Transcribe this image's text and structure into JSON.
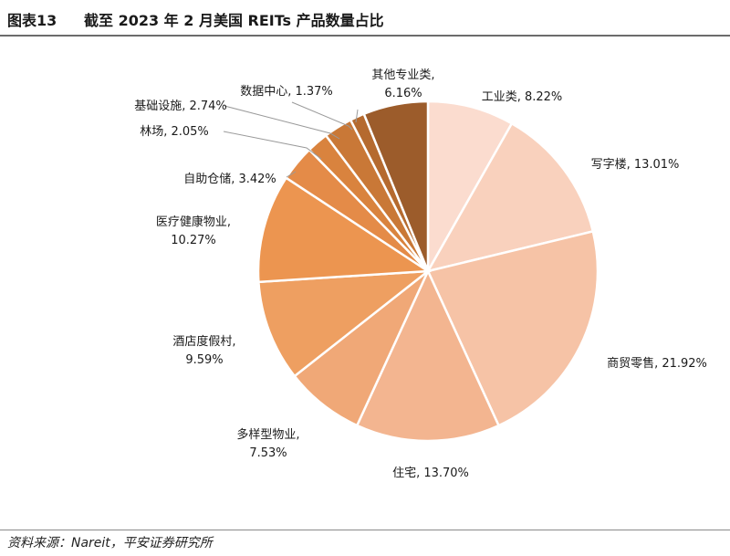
{
  "figure": {
    "number": "图表13",
    "title": "截至 2023 年 2 月美国 REITs 产品数量占比"
  },
  "source": "资料来源：Nareit，平安证券研究所",
  "chart_data": {
    "type": "pie",
    "title": "截至 2023 年 2 月美国 REITs 产品数量占比",
    "unit": "%",
    "start": "12 o'clock",
    "direction": "clockwise",
    "slices": [
      {
        "name": "工业类",
        "value": 8.22,
        "color": "#fbdccf"
      },
      {
        "name": "写字楼",
        "value": 13.01,
        "color": "#f9d1bd"
      },
      {
        "name": "商贸零售",
        "value": 21.92,
        "color": "#f6c3a6"
      },
      {
        "name": "住宅",
        "value": 13.7,
        "color": "#f3b590"
      },
      {
        "name": "多样型物业",
        "value": 7.53,
        "color": "#f0a877"
      },
      {
        "name": "酒店度假村",
        "value": 9.59,
        "color": "#ee9f61"
      },
      {
        "name": "医疗健康物业",
        "value": 10.27,
        "color": "#ec9550"
      },
      {
        "name": "自助仓储",
        "value": 3.42,
        "color": "#e48b48"
      },
      {
        "name": "林场",
        "value": 2.05,
        "color": "#d9833e"
      },
      {
        "name": "基础设施",
        "value": 2.74,
        "color": "#c97837"
      },
      {
        "name": "数据中心",
        "value": 1.37,
        "color": "#b56a2f"
      },
      {
        "name": "其他专业类",
        "value": 6.16,
        "color": "#9c5c2b"
      }
    ]
  }
}
